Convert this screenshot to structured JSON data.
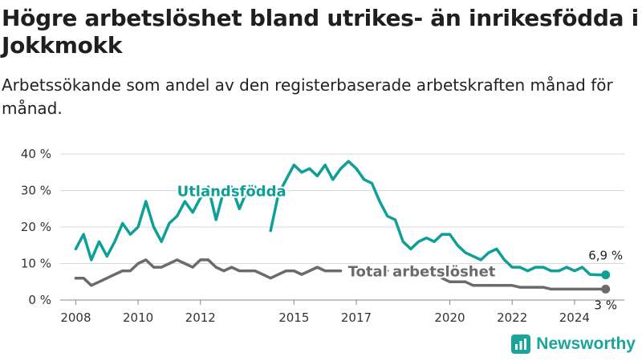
{
  "title": "Högre arbetslöshet bland utrikes- än inrikesfödda i Jokkmokk",
  "subtitle": "Arbetssökande som andel av den registerbaserade arbetskraften månad för månad.",
  "brand": "Newsworthy",
  "colors": {
    "foreign": "#0e9f96",
    "total": "#6b6b6b",
    "grid": "#d9d9d9"
  },
  "chart_data": {
    "type": "line",
    "title": "Högre arbetslöshet bland utrikes- än inrikesfödda i Jokkmokk",
    "ylim": [
      0,
      40
    ],
    "y_ticks": [
      "0 %",
      "10 %",
      "20 %",
      "30 %",
      "40 %"
    ],
    "x_ticks": [
      "2008",
      "2010",
      "2012",
      "2015",
      "2017",
      "2020",
      "2022",
      "2024"
    ],
    "grid": "horizontal",
    "x": [
      "2008-01",
      "2008-04",
      "2008-07",
      "2008-10",
      "2009-01",
      "2009-04",
      "2009-07",
      "2009-10",
      "2010-01",
      "2010-04",
      "2010-07",
      "2010-10",
      "2011-01",
      "2011-04",
      "2011-07",
      "2011-10",
      "2012-01",
      "2012-04",
      "2012-07",
      "2012-10",
      "2013-01",
      "2013-04",
      "2013-07",
      "2013-10",
      "2014-01",
      "2014-04",
      "2014-07",
      "2014-10",
      "2015-01",
      "2015-04",
      "2015-07",
      "2015-10",
      "2016-01",
      "2016-04",
      "2016-07",
      "2016-10",
      "2017-01",
      "2017-04",
      "2017-07",
      "2017-10",
      "2018-01",
      "2018-04",
      "2018-07",
      "2018-10",
      "2019-01",
      "2019-04",
      "2019-07",
      "2019-10",
      "2020-01",
      "2020-04",
      "2020-07",
      "2020-10",
      "2021-01",
      "2021-04",
      "2021-07",
      "2021-10",
      "2022-01",
      "2022-04",
      "2022-07",
      "2022-10",
      "2023-01",
      "2023-04",
      "2023-07",
      "2023-10",
      "2024-01",
      "2024-04",
      "2024-07",
      "2024-10",
      "2025-01"
    ],
    "series": [
      {
        "name": "Utlandsfödda",
        "end_label": "6,9 %",
        "values": [
          14,
          18,
          11,
          16,
          12,
          16,
          21,
          18,
          20,
          27,
          20,
          16,
          21,
          23,
          27,
          24,
          28,
          31,
          22,
          30,
          31,
          25,
          30,
          31,
          null,
          19,
          29,
          33,
          37,
          35,
          36,
          34,
          37,
          33,
          36,
          38,
          36,
          33,
          32,
          27,
          23,
          22,
          16,
          14,
          16,
          17,
          16,
          18,
          18,
          15,
          13,
          12,
          11,
          13,
          14,
          11,
          9,
          9,
          8,
          9,
          9,
          8,
          8,
          9,
          8,
          9,
          7,
          6.9,
          6.9
        ]
      },
      {
        "name": "Total arbetslöshet",
        "end_label": "3 %",
        "values": [
          6,
          6,
          4,
          5,
          6,
          7,
          8,
          8,
          10,
          11,
          9,
          9,
          10,
          11,
          10,
          9,
          11,
          11,
          9,
          8,
          9,
          8,
          8,
          8,
          7,
          6,
          7,
          8,
          8,
          7,
          8,
          9,
          8,
          8,
          8,
          null,
          9,
          8,
          null,
          7,
          8,
          null,
          null,
          null,
          null,
          null,
          null,
          6,
          5,
          5,
          5,
          4,
          4,
          4,
          4,
          4,
          4,
          3.5,
          3.5,
          3.5,
          3.5,
          3,
          3,
          3,
          3,
          3,
          3,
          3,
          3
        ]
      }
    ]
  }
}
